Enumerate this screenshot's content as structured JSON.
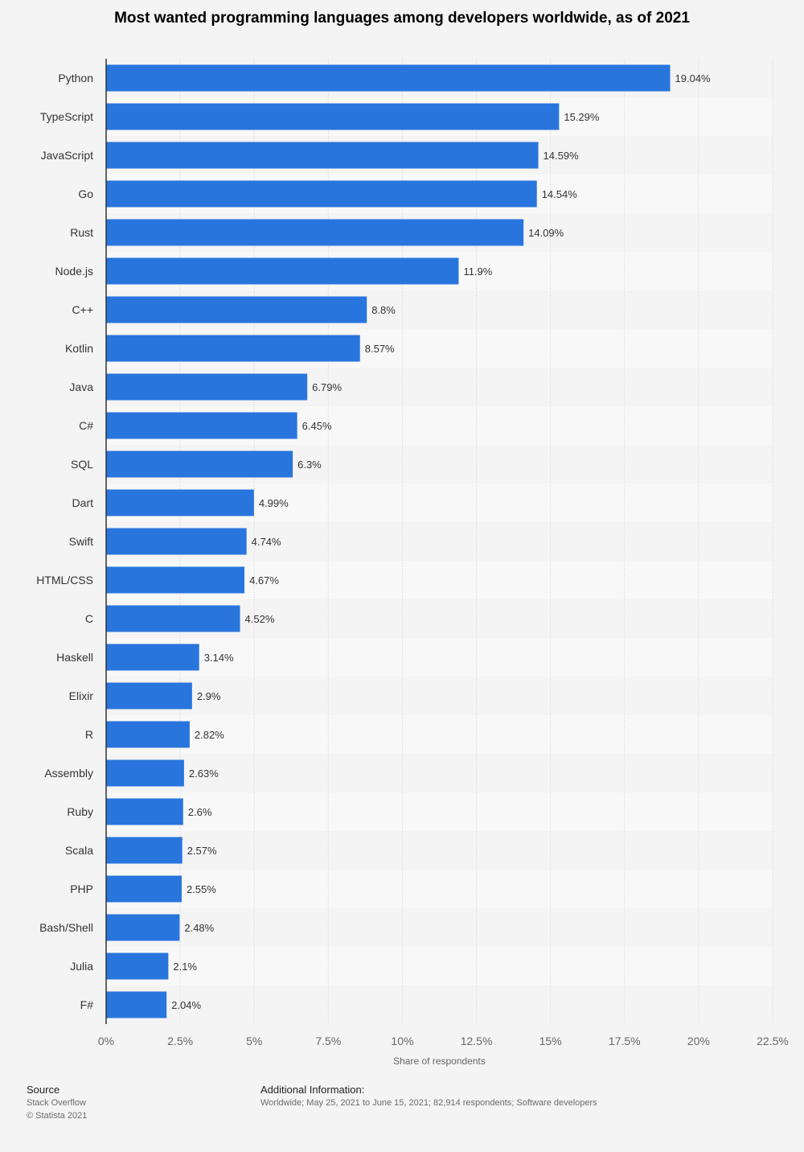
{
  "chart_data": {
    "type": "bar",
    "orientation": "horizontal",
    "title": "Most wanted programming languages among developers worldwide, as of 2021",
    "xlabel": "Share of respondents",
    "ylabel": "",
    "xlim": [
      0,
      22.5
    ],
    "xticks": [
      "0%",
      "2.5%",
      "5%",
      "7.5%",
      "10%",
      "12.5%",
      "15%",
      "17.5%",
      "20%",
      "22.5%"
    ],
    "xtick_values": [
      0,
      2.5,
      5,
      7.5,
      10,
      12.5,
      15,
      17.5,
      20,
      22.5
    ],
    "bar_color": "#2875dd",
    "grid": true,
    "categories": [
      "Python",
      "TypeScript",
      "JavaScript",
      "Go",
      "Rust",
      "Node.js",
      "C++",
      "Kotlin",
      "Java",
      "C#",
      "SQL",
      "Dart",
      "Swift",
      "HTML/CSS",
      "C",
      "Haskell",
      "Elixir",
      "R",
      "Assembly",
      "Ruby",
      "Scala",
      "PHP",
      "Bash/Shell",
      "Julia",
      "F#"
    ],
    "values": [
      19.04,
      15.29,
      14.59,
      14.54,
      14.09,
      11.9,
      8.8,
      8.57,
      6.79,
      6.45,
      6.3,
      4.99,
      4.74,
      4.67,
      4.52,
      3.14,
      2.9,
      2.82,
      2.63,
      2.6,
      2.57,
      2.55,
      2.48,
      2.1,
      2.04
    ],
    "value_labels": [
      "19.04%",
      "15.29%",
      "14.59%",
      "14.54%",
      "14.09%",
      "11.9%",
      "8.8%",
      "8.57%",
      "6.79%",
      "6.45%",
      "6.3%",
      "4.99%",
      "4.74%",
      "4.67%",
      "4.52%",
      "3.14%",
      "2.9%",
      "2.82%",
      "2.63%",
      "2.6%",
      "2.57%",
      "2.55%",
      "2.48%",
      "2.1%",
      "2.04%"
    ]
  },
  "footer": {
    "source_heading": "Source",
    "source_name": "Stack Overflow",
    "copyright": "© Statista 2021",
    "info_heading": "Additional Information:",
    "info_text": "Worldwide; May 25, 2021 to June 15, 2021; 82,914 respondents; Software developers"
  }
}
